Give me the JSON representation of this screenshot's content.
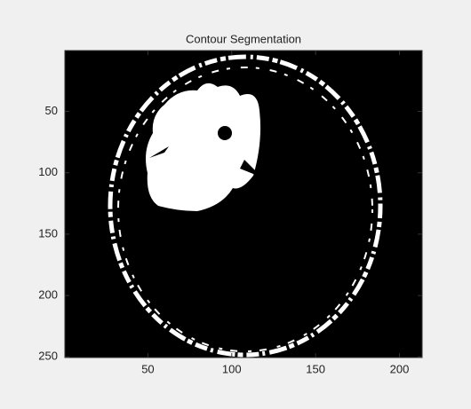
{
  "chart_data": {
    "type": "image",
    "title": "Contour Segmentation",
    "xlim": [
      0.5,
      213.5
    ],
    "xticks": [
      50,
      100,
      150,
      200
    ],
    "ylim": [
      0.5,
      250.5
    ],
    "yticks": [
      50,
      100,
      150,
      200,
      250
    ],
    "y_reversed": true
  }
}
